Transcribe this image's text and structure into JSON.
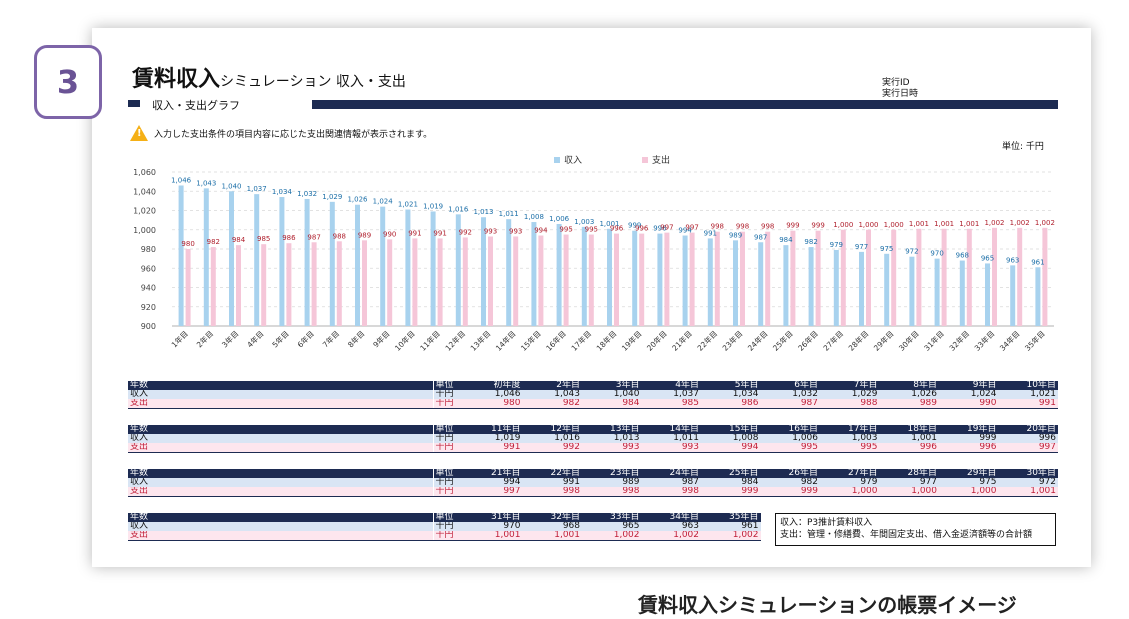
{
  "step_badge": "3",
  "title_main": "賃料収入",
  "title_sub": "シミュレーション 収入・支出",
  "meta": {
    "line1": "実行ID",
    "line2": "実行日時"
  },
  "section_label": "収入・支出グラフ",
  "notice": "入力した支出条件の項目内容に応じた支出関連情報が表示されます。",
  "unit_label": "単位: 千円",
  "colors": {
    "income": "#a8d2ee",
    "expense": "#f5c6d8",
    "navy": "#1d2b52",
    "income_label": "#1c6fa8",
    "expense_label": "#b0212e"
  },
  "chart_data": {
    "type": "bar",
    "categories": [
      "1年目",
      "2年目",
      "3年目",
      "4年目",
      "5年目",
      "6年目",
      "7年目",
      "8年目",
      "9年目",
      "10年目",
      "11年目",
      "12年目",
      "13年目",
      "14年目",
      "15年目",
      "16年目",
      "17年目",
      "18年目",
      "19年目",
      "20年目",
      "21年目",
      "22年目",
      "23年目",
      "24年目",
      "25年目",
      "26年目",
      "27年目",
      "28年目",
      "29年目",
      "30年目",
      "31年目",
      "32年目",
      "33年目",
      "34年目",
      "35年目"
    ],
    "series": [
      {
        "name": "収入",
        "values": [
          1046,
          1043,
          1040,
          1037,
          1034,
          1032,
          1029,
          1026,
          1024,
          1021,
          1019,
          1016,
          1013,
          1011,
          1008,
          1006,
          1003,
          1001,
          999,
          996,
          994,
          991,
          989,
          987,
          984,
          982,
          979,
          977,
          975,
          972,
          970,
          968,
          965,
          963,
          961
        ]
      },
      {
        "name": "支出",
        "values": [
          980,
          982,
          984,
          985,
          986,
          987,
          988,
          989,
          990,
          991,
          991,
          992,
          993,
          993,
          994,
          995,
          995,
          996,
          996,
          997,
          997,
          998,
          998,
          998,
          999,
          999,
          1000,
          1000,
          1000,
          1001,
          1001,
          1001,
          1002,
          1002,
          1002
        ]
      }
    ],
    "ylim": [
      900,
      1060
    ],
    "yticks": [
      "900",
      "920",
      "940",
      "960",
      "980",
      "1,000",
      "1,020",
      "1,040",
      "1,060"
    ],
    "grid": true,
    "legend_position": "top-center"
  },
  "table": {
    "col_year": "年数",
    "col_unit": "単位",
    "row_income": "収入",
    "row_expense": "支出",
    "unit": "千円",
    "blocks": [
      {
        "years": [
          "初年度",
          "2年目",
          "3年目",
          "4年目",
          "5年目",
          "6年目",
          "7年目",
          "8年目",
          "9年目",
          "10年目"
        ],
        "income": [
          "1,046",
          "1,043",
          "1,040",
          "1,037",
          "1,034",
          "1,032",
          "1,029",
          "1,026",
          "1,024",
          "1,021"
        ],
        "expense": [
          "980",
          "982",
          "984",
          "985",
          "986",
          "987",
          "988",
          "989",
          "990",
          "991"
        ]
      },
      {
        "years": [
          "11年目",
          "12年目",
          "13年目",
          "14年目",
          "15年目",
          "16年目",
          "17年目",
          "18年目",
          "19年目",
          "20年目"
        ],
        "income": [
          "1,019",
          "1,016",
          "1,013",
          "1,011",
          "1,008",
          "1,006",
          "1,003",
          "1,001",
          "999",
          "996"
        ],
        "expense": [
          "991",
          "992",
          "993",
          "993",
          "994",
          "995",
          "995",
          "996",
          "996",
          "997"
        ]
      },
      {
        "years": [
          "21年目",
          "22年目",
          "23年目",
          "24年目",
          "25年目",
          "26年目",
          "27年目",
          "28年目",
          "29年目",
          "30年目"
        ],
        "income": [
          "994",
          "991",
          "989",
          "987",
          "984",
          "982",
          "979",
          "977",
          "975",
          "972"
        ],
        "expense": [
          "997",
          "998",
          "998",
          "998",
          "999",
          "999",
          "1,000",
          "1,000",
          "1,000",
          "1,001"
        ]
      },
      {
        "years": [
          "31年目",
          "32年目",
          "33年目",
          "34年目",
          "35年目"
        ],
        "income": [
          "970",
          "968",
          "965",
          "963",
          "961"
        ],
        "expense": [
          "1,001",
          "1,001",
          "1,002",
          "1,002",
          "1,002"
        ]
      }
    ]
  },
  "note": {
    "line1": "収入：P3推計賃料収入",
    "line2": "支出：管理・修繕費、年間固定支出、借入金返済額等の合計額"
  },
  "caption": "賃料収入シミュレーションの帳票イメージ"
}
